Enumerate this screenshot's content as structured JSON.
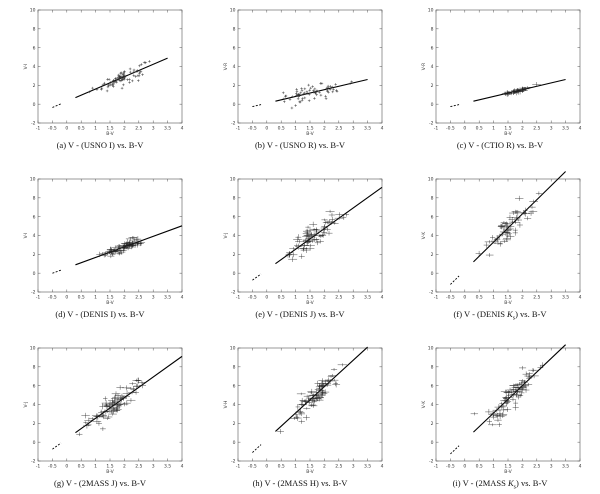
{
  "figure": {
    "panels": [
      {
        "id": "a",
        "caption": "(a) V - (USNO I) vs. B-V",
        "ylabel": "V-I"
      },
      {
        "id": "b",
        "caption": "(b) V - (USNO R) vs. B-V",
        "ylabel": "V-R"
      },
      {
        "id": "c",
        "caption": "(c) V - (CTIO R) vs. B-V",
        "ylabel": "V-R"
      },
      {
        "id": "d",
        "caption": "(d) V - (DENIS I) vs. B-V",
        "ylabel": "V-I"
      },
      {
        "id": "e",
        "caption": "(e) V - (DENIS J) vs. B-V",
        "ylabel": "V-J"
      },
      {
        "id": "f",
        "caption_prefix": "(f) V - (DENIS ",
        "caption_sub": "K",
        "caption_subscript": "s",
        "caption_suffix": ") vs. B-V",
        "ylabel": "V-K"
      },
      {
        "id": "g",
        "caption": "(g) V - (2MASS J) vs. B-V",
        "ylabel": "V-J"
      },
      {
        "id": "h",
        "caption": "(h) V - (2MASS H) vs. B-V",
        "ylabel": "V-H"
      },
      {
        "id": "i",
        "caption_prefix": "(i) V - (2MASS ",
        "caption_sub": "K",
        "caption_subscript": "s",
        "caption_suffix": ") vs. B-V",
        "ylabel": "V-K"
      }
    ]
  },
  "chart_data": [
    {
      "id": "a",
      "type": "scatter",
      "xlabel": "B-V",
      "ylabel": "V-I",
      "xlim": [
        -1,
        4
      ],
      "ylim": [
        -2,
        10
      ],
      "xticks": [
        -1,
        -0.5,
        0,
        0.5,
        1,
        1.5,
        2,
        2.5,
        3,
        3.5,
        4
      ],
      "yticks": [
        -2,
        0,
        2,
        4,
        6,
        8,
        10
      ],
      "errorbars": false,
      "fit": {
        "dashed_x": [
          -0.5,
          -0.2
        ],
        "solid_x": [
          0.3,
          3.5
        ],
        "slope": 1.31,
        "intercept": 0.3
      },
      "points": {
        "center": [
          1.9,
          2.8
        ],
        "spread": [
          0.4,
          0.65
        ],
        "count": 85,
        "min_x": 0.6,
        "max_x": 3.0
      }
    },
    {
      "id": "b",
      "type": "scatter",
      "xlabel": "B-V",
      "ylabel": "V-R",
      "xlim": [
        -1,
        4
      ],
      "ylim": [
        -2,
        10
      ],
      "xticks": [
        -1,
        -0.5,
        0,
        0.5,
        1,
        1.5,
        2,
        2.5,
        3,
        3.5,
        4
      ],
      "yticks": [
        -2,
        0,
        2,
        4,
        6,
        8,
        10
      ],
      "errorbars": false,
      "fit": {
        "dashed_x": [
          -0.5,
          -0.2
        ],
        "solid_x": [
          0.3,
          3.5
        ],
        "slope": 0.72,
        "intercept": 0.1
      },
      "points": {
        "center": [
          1.6,
          1.3
        ],
        "spread": [
          0.55,
          0.75
        ],
        "count": 70,
        "min_x": 0.4,
        "max_x": 3.0
      }
    },
    {
      "id": "c",
      "type": "scatter",
      "xlabel": "B-V",
      "ylabel": "V-R",
      "xlim": [
        -1,
        4
      ],
      "ylim": [
        -2,
        10
      ],
      "xticks": [
        -1,
        -0.5,
        0,
        0.5,
        1,
        1.5,
        2,
        2.5,
        3,
        3.5,
        4
      ],
      "yticks": [
        -2,
        0,
        2,
        4,
        6,
        8,
        10
      ],
      "errorbars": true,
      "fit": {
        "dashed_x": [
          -0.5,
          -0.2
        ],
        "solid_x": [
          0.3,
          3.5
        ],
        "slope": 0.72,
        "intercept": 0.1
      },
      "points": {
        "center": [
          1.85,
          1.4
        ],
        "spread": [
          0.25,
          0.15
        ],
        "count": 35,
        "min_x": 1.4,
        "max_x": 2.5
      }
    },
    {
      "id": "d",
      "type": "scatter",
      "xlabel": "B-V",
      "ylabel": "V-I",
      "xlim": [
        -1,
        4
      ],
      "ylim": [
        -2,
        10
      ],
      "xticks": [
        -1,
        -0.5,
        0,
        0.5,
        1,
        1.5,
        2,
        2.5,
        3,
        3.5,
        4
      ],
      "yticks": [
        -2,
        0,
        2,
        4,
        6,
        8,
        10
      ],
      "errorbars": true,
      "fit": {
        "dashed_x": [
          -0.5,
          -0.2
        ],
        "solid_x": [
          0.3,
          4.0
        ],
        "slope": 1.12,
        "intercept": 0.55
      },
      "points": {
        "center": [
          1.9,
          2.5
        ],
        "spread": [
          0.45,
          0.4
        ],
        "count": 75,
        "min_x": 0.6,
        "max_x": 2.9
      }
    },
    {
      "id": "e",
      "type": "scatter",
      "xlabel": "B-V",
      "ylabel": "V-J",
      "xlim": [
        -1,
        4
      ],
      "ylim": [
        -2,
        10
      ],
      "xticks": [
        -1,
        -0.5,
        0,
        0.5,
        1,
        1.5,
        2,
        2.5,
        3,
        3.5,
        4
      ],
      "yticks": [
        -2,
        0,
        2,
        4,
        6,
        8,
        10
      ],
      "errorbars": true,
      "fit": {
        "dashed_x": [
          -0.5,
          -0.2
        ],
        "solid_x": [
          0.3,
          4.0
        ],
        "slope": 2.19,
        "intercept": 0.35
      },
      "points": {
        "center": [
          1.75,
          4.2
        ],
        "spread": [
          0.45,
          0.9
        ],
        "count": 75,
        "min_x": 0.4,
        "max_x": 2.8
      }
    },
    {
      "id": "f",
      "type": "scatter",
      "xlabel": "B-V",
      "ylabel": "V-K",
      "xlim": [
        -1,
        4
      ],
      "ylim": [
        -2,
        10
      ],
      "xticks": [
        -1,
        -0.5,
        0,
        0.5,
        1,
        1.5,
        2,
        2.5,
        3,
        3.5,
        4
      ],
      "yticks": [
        -2,
        0,
        2,
        4,
        6,
        8,
        10
      ],
      "errorbars": true,
      "fit": {
        "dashed_x": [
          -0.5,
          -0.2
        ],
        "solid_x": [
          0.3,
          3.5
        ],
        "slope": 3.0,
        "intercept": 0.3
      },
      "points": {
        "center": [
          1.6,
          5.0
        ],
        "spread": [
          0.4,
          1.1
        ],
        "count": 60,
        "min_x": 0.4,
        "max_x": 2.6
      }
    },
    {
      "id": "g",
      "type": "scatter",
      "xlabel": "B-V",
      "ylabel": "V-J",
      "xlim": [
        -1,
        4
      ],
      "ylim": [
        -2,
        10
      ],
      "xticks": [
        -1,
        -0.5,
        0,
        0.5,
        1,
        1.5,
        2,
        2.5,
        3,
        3.5,
        4
      ],
      "yticks": [
        -2,
        0,
        2,
        4,
        6,
        8,
        10
      ],
      "errorbars": true,
      "fit": {
        "dashed_x": [
          -0.5,
          -0.2
        ],
        "solid_x": [
          0.3,
          4.0
        ],
        "slope": 2.19,
        "intercept": 0.35
      },
      "points": {
        "center": [
          1.7,
          4.2
        ],
        "spread": [
          0.45,
          0.9
        ],
        "count": 85,
        "min_x": 0.3,
        "max_x": 2.8
      }
    },
    {
      "id": "h",
      "type": "scatter",
      "xlabel": "B-V",
      "ylabel": "V-H",
      "xlim": [
        -1,
        4
      ],
      "ylim": [
        -2,
        10
      ],
      "xticks": [
        -1,
        -0.5,
        0,
        0.5,
        1,
        1.5,
        2,
        2.5,
        3,
        3.5,
        4
      ],
      "yticks": [
        -2,
        0,
        2,
        4,
        6,
        8,
        10
      ],
      "errorbars": true,
      "fit": {
        "dashed_x": [
          -0.5,
          -0.2
        ],
        "solid_x": [
          0.3,
          3.5
        ],
        "slope": 2.8,
        "intercept": 0.3
      },
      "points": {
        "center": [
          1.7,
          5.0
        ],
        "spread": [
          0.45,
          1.0
        ],
        "count": 80,
        "min_x": 0.3,
        "max_x": 2.8
      }
    },
    {
      "id": "i",
      "type": "scatter",
      "xlabel": "B-V",
      "ylabel": "V-K",
      "xlim": [
        -1,
        4
      ],
      "ylim": [
        -2,
        10
      ],
      "xticks": [
        -1,
        -0.5,
        0,
        0.5,
        1,
        1.5,
        2,
        2.5,
        3,
        3.5,
        4
      ],
      "yticks": [
        -2,
        0,
        2,
        4,
        6,
        8,
        10
      ],
      "errorbars": true,
      "fit": {
        "dashed_x": [
          -0.5,
          -0.2
        ],
        "solid_x": [
          0.3,
          3.5
        ],
        "slope": 2.9,
        "intercept": 0.2
      },
      "points": {
        "center": [
          1.6,
          4.9
        ],
        "spread": [
          0.45,
          1.1
        ],
        "count": 85,
        "min_x": 0.3,
        "max_x": 2.8
      }
    }
  ]
}
